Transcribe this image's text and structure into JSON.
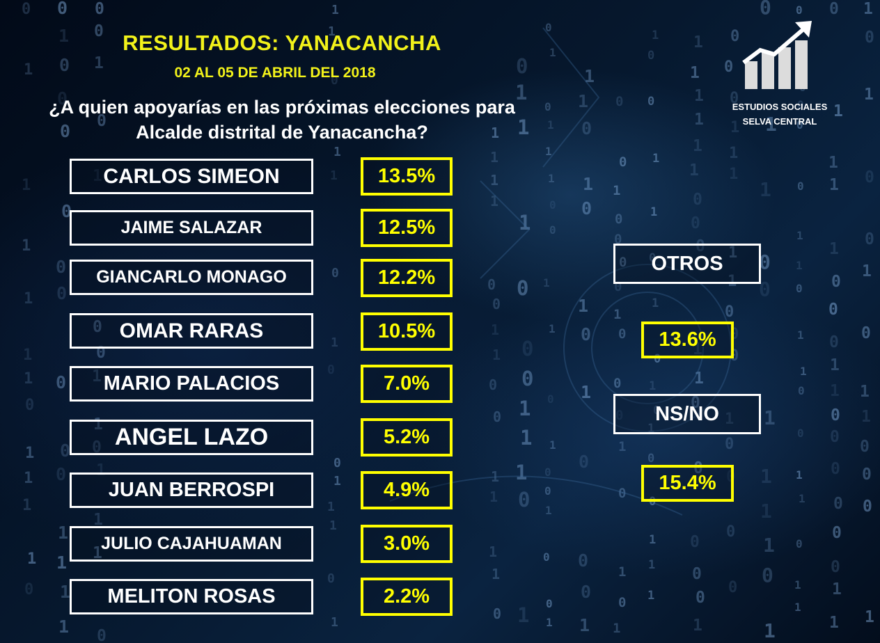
{
  "header": {
    "title": "RESULTADOS:  YANACANCHA",
    "subtitle": "02 AL 05 DE ABRIL DEL 2018",
    "question_line1": "¿A quien apoyarías en las próximas elecciones para",
    "question_line2": "Alcalde  distrital de Yanacancha?"
  },
  "logo": {
    "icon": "bar-chart-growth-icon",
    "line1": "ESTUDIOS SOCIALES",
    "line2": "SELVA CENTRAL"
  },
  "candidates": [
    {
      "name": "CARLOS SIMEON",
      "percent": "13.5%"
    },
    {
      "name": "JAIME SALAZAR",
      "percent": "12.5%"
    },
    {
      "name": "GIANCARLO MONAGO",
      "percent": "12.2%"
    },
    {
      "name": "OMAR RARAS",
      "percent": "10.5%"
    },
    {
      "name": "MARIO PALACIOS",
      "percent": "7.0%"
    },
    {
      "name": "ANGEL LAZO",
      "percent": "5.2%"
    },
    {
      "name": "JUAN BERROSPI",
      "percent": "4.9%"
    },
    {
      "name": "JULIO CAJAHUAMAN",
      "percent": "3.0%"
    },
    {
      "name": "MELITON ROSAS",
      "percent": "2.2%"
    }
  ],
  "others": {
    "label": "OTROS",
    "percent": "13.6%"
  },
  "undecided": {
    "label": "NS/NO",
    "percent": "15.4%"
  },
  "colors": {
    "accent_yellow": "#ffff00",
    "title_yellow": "#f2f21a",
    "text_white": "#ffffff",
    "background": "#06182e"
  }
}
